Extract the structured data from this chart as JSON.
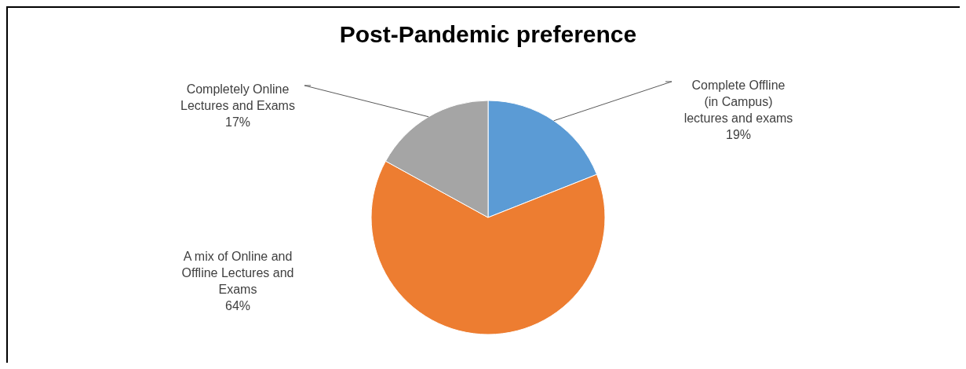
{
  "chart_data": {
    "type": "pie",
    "title": "Post-Pandemic preference",
    "categories": [
      "Complete Offline\n(in Campus)\nlectures and exams",
      "A mix of Online and\nOffline Lectures and\nExams",
      "Completely Online\nLectures and Exams"
    ],
    "values": [
      19,
      64,
      17
    ],
    "colors": [
      "#5b9bd5",
      "#ed7d31",
      "#a5a5a5"
    ],
    "value_labels": [
      "19%",
      "64%",
      "17%"
    ],
    "legend": false
  }
}
